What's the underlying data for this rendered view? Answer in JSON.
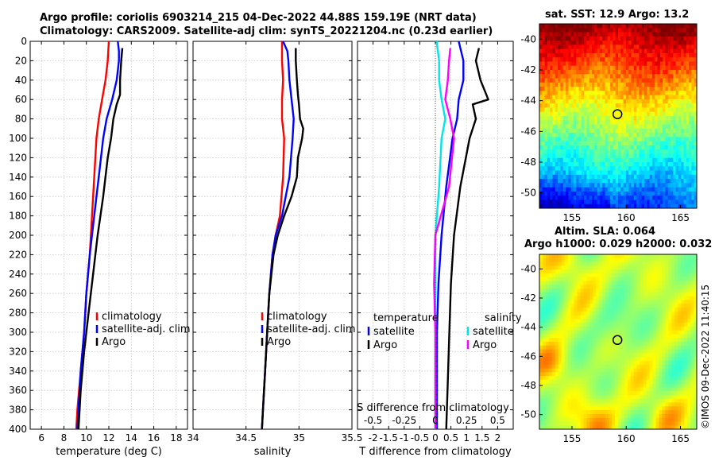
{
  "header": {
    "line1": "Argo profile: coriolis 6903214_215 04-Dec-2022 44.88S 159.19E (NRT data)",
    "line2": "Climatology: CARS2009. Satellite-adj clim: synTS_20221204.nc (0.23d earlier)"
  },
  "sst_title": "sat. SST: 12.9 Argo: 13.2",
  "sla_title1": "Altim. SLA: 0.064",
  "sla_title2": "Argo h1000: 0.029 h2000: 0.032",
  "watermark": "©IMOS 09-Dec-2022 11:40:15",
  "colors": {
    "climatology": "#ff0000",
    "satellite": "#0000ff",
    "argo": "#000000",
    "s_satellite": "#00e5e5",
    "s_argo": "#ff00ff"
  },
  "chart_data": [
    {
      "type": "line",
      "name": "temperature-profile",
      "xlabel": "temperature (deg C)",
      "ylabel": "",
      "xlim": [
        5,
        19
      ],
      "ylim": [
        400,
        0
      ],
      "xticks": [
        6,
        8,
        10,
        12,
        14,
        16,
        18
      ],
      "yticks": [
        0,
        20,
        40,
        60,
        80,
        100,
        120,
        140,
        160,
        180,
        200,
        220,
        240,
        260,
        280,
        300,
        320,
        340,
        360,
        380,
        400
      ],
      "legend": [
        "climatology",
        "satellite-adj. clim",
        "Argo"
      ],
      "series": [
        {
          "name": "climatology",
          "color": "#ff0000",
          "depth": [
            0,
            20,
            40,
            60,
            80,
            100,
            140,
            180,
            220,
            260,
            300,
            340,
            380,
            400
          ],
          "values": [
            12.0,
            11.9,
            11.7,
            11.4,
            11.1,
            10.9,
            10.7,
            10.5,
            10.3,
            10.0,
            9.8,
            9.5,
            9.2,
            9.1
          ]
        },
        {
          "name": "satellite-adj. clim",
          "color": "#0000ff",
          "depth": [
            0,
            10,
            20,
            40,
            60,
            80,
            100,
            140,
            180,
            220,
            260,
            300,
            340,
            380,
            400
          ],
          "values": [
            12.8,
            12.9,
            12.9,
            12.7,
            12.3,
            11.8,
            11.5,
            11.1,
            10.7,
            10.3,
            10.0,
            9.8,
            9.5,
            9.3,
            9.2
          ]
        },
        {
          "name": "Argo",
          "color": "#000000",
          "depth": [
            7,
            20,
            40,
            55,
            65,
            80,
            100,
            120,
            160,
            200,
            240,
            280,
            320,
            360,
            400
          ],
          "values": [
            13.2,
            13.1,
            13.0,
            13.0,
            12.7,
            12.4,
            12.2,
            11.9,
            11.5,
            11.0,
            10.6,
            10.2,
            9.8,
            9.5,
            9.3
          ]
        }
      ]
    },
    {
      "type": "line",
      "name": "salinity-profile",
      "xlabel": "salinity",
      "ylabel": "",
      "xlim": [
        34,
        35.5
      ],
      "ylim": [
        400,
        0
      ],
      "xticks": [
        34,
        34.5,
        35,
        35.5
      ],
      "legend": [
        "climatology",
        "satellite-adj. clim",
        "Argo"
      ],
      "series": [
        {
          "name": "climatology",
          "color": "#ff0000",
          "depth": [
            0,
            20,
            40,
            60,
            80,
            100,
            140,
            180,
            200,
            220,
            260,
            300,
            340,
            380,
            400
          ],
          "values": [
            34.84,
            34.84,
            34.85,
            34.84,
            34.84,
            34.86,
            34.85,
            34.82,
            34.78,
            34.75,
            34.72,
            34.7,
            34.68,
            34.66,
            34.65
          ]
        },
        {
          "name": "satellite-adj. clim",
          "color": "#0000ff",
          "depth": [
            0,
            10,
            20,
            40,
            60,
            80,
            100,
            140,
            180,
            200,
            220,
            260,
            300,
            340,
            380,
            400
          ],
          "values": [
            34.85,
            34.89,
            34.9,
            34.91,
            34.93,
            34.95,
            34.94,
            34.91,
            34.84,
            34.78,
            34.75,
            34.72,
            34.7,
            34.68,
            34.66,
            34.65
          ]
        },
        {
          "name": "Argo",
          "color": "#000000",
          "depth": [
            7,
            20,
            40,
            55,
            65,
            80,
            90,
            100,
            120,
            140,
            160,
            180,
            200,
            220,
            260,
            300,
            340,
            380,
            400
          ],
          "values": [
            34.97,
            34.97,
            34.98,
            34.99,
            35.0,
            35.01,
            35.04,
            35.03,
            34.99,
            34.98,
            34.93,
            34.86,
            34.8,
            34.76,
            34.72,
            34.7,
            34.68,
            34.66,
            34.65
          ]
        }
      ]
    },
    {
      "type": "line",
      "name": "difference-profile",
      "xlabel": "T difference from climatology",
      "ylabel": "",
      "top_label": "S difference from climatology",
      "xlim": [
        -2.5,
        2.5
      ],
      "ylim": [
        400,
        0
      ],
      "xticks": [
        -2,
        -1.5,
        -1,
        -0.5,
        0,
        0.5,
        1,
        1.5,
        2
      ],
      "xtick_labels": [
        "-2",
        "-1.5",
        "-1",
        "-0.5",
        "0",
        "0.5",
        "1",
        "1.5",
        "2"
      ],
      "s_xlim": [
        -0.625,
        0.625
      ],
      "s_xticks": [
        -0.5,
        -0.25,
        0,
        0.25,
        0.5
      ],
      "s_xtick_labels": [
        "-0.5",
        "-0.25",
        "0",
        "0.25",
        "0.5"
      ],
      "legend_t_title": "temperature",
      "legend_s_title": "salinity",
      "legend_t": [
        "satellite",
        "Argo"
      ],
      "legend_s": [
        "satellite",
        "Argo"
      ],
      "series": [
        {
          "name": "temperature satellite",
          "color": "#0000ff",
          "axis": "T",
          "depth": [
            0,
            20,
            40,
            60,
            80,
            100,
            150,
            200,
            250,
            300,
            350,
            400
          ],
          "values": [
            0.75,
            0.9,
            0.9,
            0.75,
            0.7,
            0.55,
            0.35,
            0.2,
            0.1,
            0.05,
            0.05,
            0.05
          ]
        },
        {
          "name": "temperature Argo",
          "color": "#000000",
          "axis": "T",
          "depth": [
            7,
            20,
            40,
            60,
            65,
            80,
            100,
            150,
            200,
            250,
            300,
            350,
            400
          ],
          "values": [
            1.4,
            1.3,
            1.45,
            1.7,
            1.2,
            1.3,
            1.1,
            0.8,
            0.6,
            0.5,
            0.45,
            0.4,
            0.35
          ]
        },
        {
          "name": "salinity satellite",
          "color": "#00e5e5",
          "axis": "S",
          "depth": [
            0,
            20,
            40,
            60,
            80,
            100,
            150,
            200,
            250,
            300,
            350,
            400
          ],
          "values": [
            0.01,
            0.03,
            0.03,
            0.05,
            0.08,
            0.05,
            0.03,
            0.0,
            0.0,
            0.0,
            0.0,
            0.0
          ]
        },
        {
          "name": "salinity Argo",
          "color": "#ff00ff",
          "axis": "S",
          "depth": [
            7,
            20,
            40,
            60,
            80,
            100,
            150,
            200,
            250,
            300,
            350,
            400
          ],
          "values": [
            0.12,
            0.11,
            0.1,
            0.08,
            0.12,
            0.15,
            0.11,
            0.0,
            -0.01,
            0.0,
            0.0,
            0.0
          ]
        }
      ]
    },
    {
      "type": "heatmap",
      "name": "sst-map",
      "xticks": [
        155,
        160,
        165
      ],
      "yticks": [
        -40,
        -42,
        -44,
        -46,
        -48,
        -50
      ],
      "xlim": [
        152,
        166.5
      ],
      "ylim": [
        -51,
        -39
      ],
      "argo_position": {
        "lon": 159.19,
        "lat": -44.88
      }
    },
    {
      "type": "heatmap",
      "name": "sla-map",
      "xticks": [
        155,
        160,
        165
      ],
      "yticks": [
        -40,
        -42,
        -44,
        -46,
        -48,
        -50
      ],
      "xlim": [
        152,
        166.5
      ],
      "ylim": [
        -51,
        -39
      ],
      "argo_position": {
        "lon": 159.19,
        "lat": -44.88
      }
    }
  ]
}
